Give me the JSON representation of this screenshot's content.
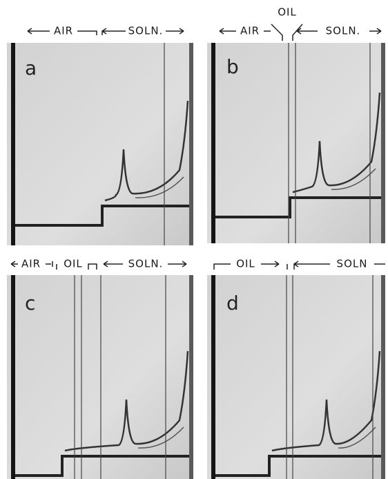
{
  "panels": [
    {
      "label": "a",
      "headers": [
        "AIR",
        "SOLN."
      ]
    },
    {
      "label": "b",
      "headers": [
        "OIL",
        "AIR",
        "SOLN."
      ]
    },
    {
      "label": "c",
      "headers": [
        "AIR",
        "OIL",
        "SOLN."
      ]
    },
    {
      "label": "d",
      "headers": [
        "OIL",
        "SOLN"
      ]
    }
  ]
}
